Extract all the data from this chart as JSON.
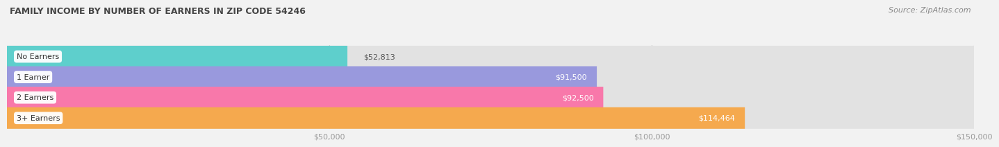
{
  "title": "FAMILY INCOME BY NUMBER OF EARNERS IN ZIP CODE 54246",
  "source": "Source: ZipAtlas.com",
  "categories": [
    "No Earners",
    "1 Earner",
    "2 Earners",
    "3+ Earners"
  ],
  "values": [
    52813,
    91500,
    92500,
    114464
  ],
  "bar_colors": [
    "#5ecfcc",
    "#9999dd",
    "#f878aa",
    "#f5a94e"
  ],
  "value_labels": [
    "$52,813",
    "$91,500",
    "$92,500",
    "$114,464"
  ],
  "value_label_inside": [
    false,
    true,
    true,
    true
  ],
  "xmin": 0,
  "xmax": 150000,
  "xtick_values": [
    50000,
    100000,
    150000
  ],
  "xtick_labels": [
    "$50,000",
    "$100,000",
    "$150,000"
  ],
  "bar_height": 0.62,
  "background_color": "#f2f2f2",
  "bar_bg_color": "#e2e2e2"
}
